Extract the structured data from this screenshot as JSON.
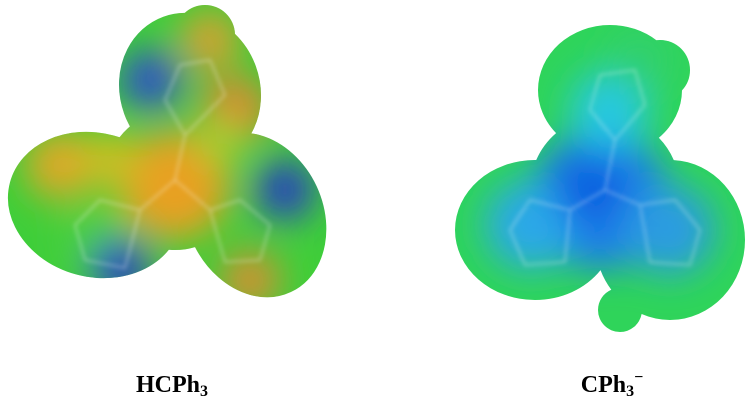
{
  "panels": [
    {
      "label": "HCPh",
      "subscript": "3"
    },
    {
      "label": "CPh",
      "subscript": "3",
      "superscript": "−"
    }
  ]
}
